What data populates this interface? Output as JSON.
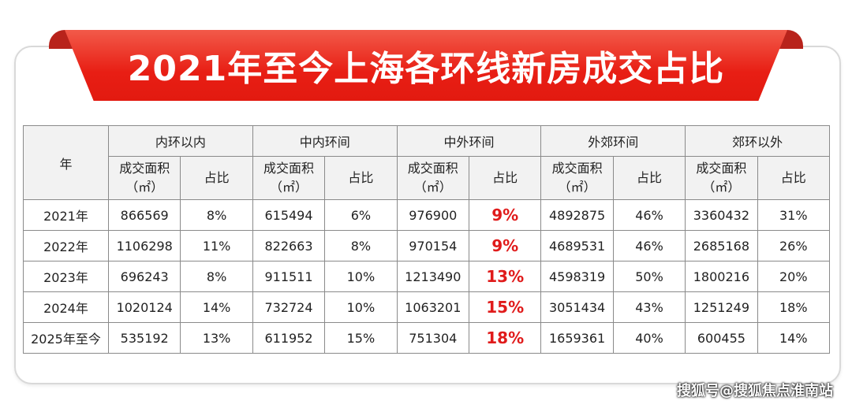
{
  "title": "2021年至今上海各环线新房成交占比",
  "header": {
    "year": "年",
    "groups": [
      "内环以内",
      "中内环间",
      "中外环间",
      "外郊环间",
      "郊环以外"
    ],
    "area_label": "成交面积",
    "area_unit": "（㎡）",
    "share_label": "占比"
  },
  "rows": [
    {
      "year": "2021年",
      "cells": [
        "866569",
        "8%",
        "615494",
        "6%",
        "976900",
        "9%",
        "4892875",
        "46%",
        "3360432",
        "31%"
      ]
    },
    {
      "year": "2022年",
      "cells": [
        "1106298",
        "11%",
        "822663",
        "8%",
        "970154",
        "9%",
        "4689531",
        "46%",
        "2685168",
        "26%"
      ]
    },
    {
      "year": "2023年",
      "cells": [
        "696243",
        "8%",
        "911511",
        "10%",
        "1213490",
        "13%",
        "4598319",
        "50%",
        "1800216",
        "20%"
      ]
    },
    {
      "year": "2024年",
      "cells": [
        "1020124",
        "14%",
        "732724",
        "10%",
        "1063201",
        "15%",
        "3051434",
        "43%",
        "1251249",
        "18%"
      ]
    },
    {
      "year": "2025年至今",
      "cells": [
        "535192",
        "13%",
        "611952",
        "15%",
        "751304",
        "18%",
        "1659361",
        "40%",
        "600455",
        "14%"
      ]
    }
  ],
  "highlight_color": "#e01b1b",
  "brand_color": "#e81e14",
  "watermark": "搜狐号@搜狐焦点淮南站"
}
